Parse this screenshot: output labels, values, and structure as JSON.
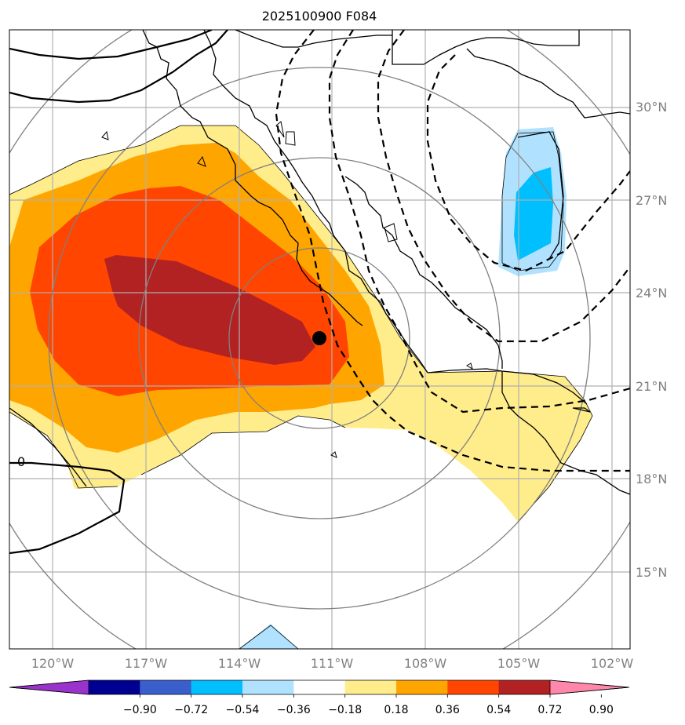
{
  "title": "2025100900 F084",
  "lat_labels": [
    "30°N",
    "27°N",
    "24°N",
    "21°N",
    "18°N",
    "15°N"
  ],
  "lon_labels": [
    "120°W",
    "117°W",
    "114°W",
    "111°W",
    "108°W",
    "105°W",
    "102°W"
  ],
  "contour_label": "0",
  "colorbar": {
    "labels": [
      "−0.90",
      "−0.72",
      "−0.54",
      "−0.36",
      "−0.18",
      "0.18",
      "0.36",
      "0.54",
      "0.72",
      "0.90"
    ],
    "colors": [
      "#9933cc",
      "#000090",
      "#3a5fcd",
      "#00bfff",
      "#b0e2ff",
      "#ffffff",
      "#ffec8b",
      "#ffa500",
      "#ff4500",
      "#b22222",
      "#ff88aa"
    ]
  },
  "storm_marker": {
    "lon": "111.4°W",
    "lat": "22.5°N"
  },
  "colors": {
    "shade_0_18": "#ffec8b",
    "shade_0_36": "#ffa500",
    "shade_0_54": "#ff4500",
    "shade_0_72": "#b22222",
    "shade_neg_0_18": "#b0e2ff",
    "shade_neg_0_36": "#00bfff"
  }
}
